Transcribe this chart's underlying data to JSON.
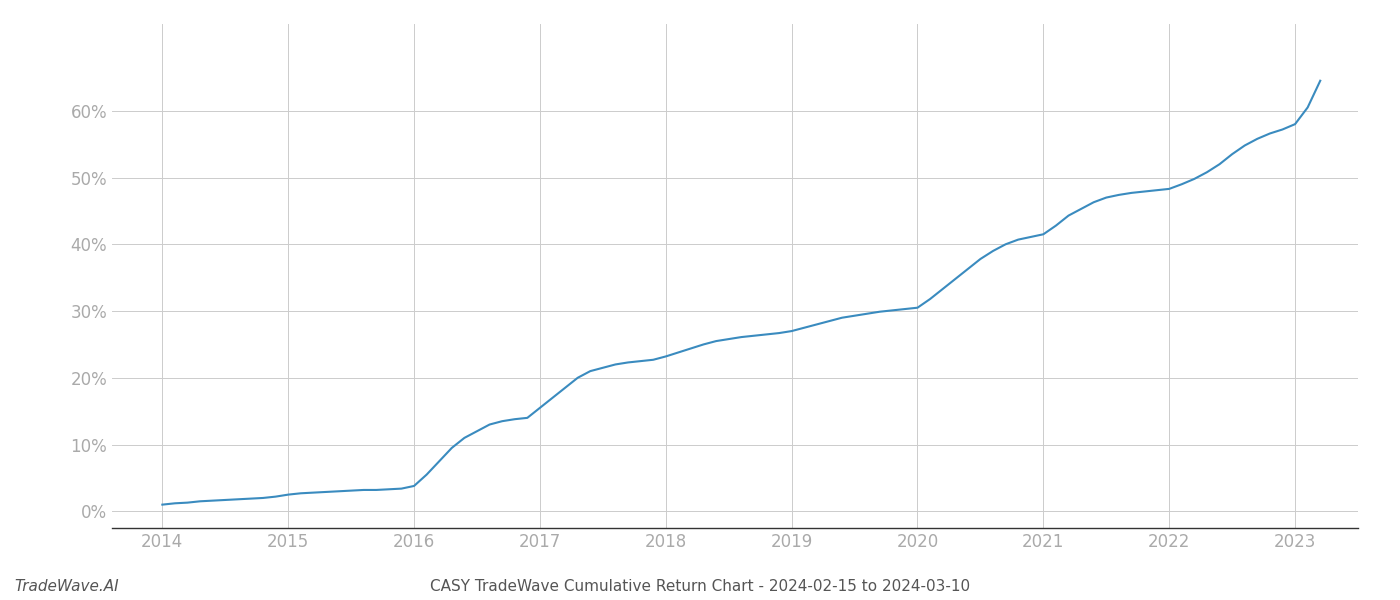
{
  "title": "CASY TradeWave Cumulative Return Chart - 2024-02-15 to 2024-03-10",
  "watermark": "TradeWave.AI",
  "line_color": "#3a8bbf",
  "background_color": "#ffffff",
  "grid_color": "#cccccc",
  "line_width": 1.5,
  "x_values": [
    2014.0,
    2014.1,
    2014.2,
    2014.3,
    2014.4,
    2014.5,
    2014.6,
    2014.7,
    2014.8,
    2014.9,
    2015.0,
    2015.1,
    2015.2,
    2015.3,
    2015.4,
    2015.5,
    2015.6,
    2015.7,
    2015.8,
    2015.9,
    2016.0,
    2016.1,
    2016.2,
    2016.3,
    2016.4,
    2016.5,
    2016.6,
    2016.7,
    2016.8,
    2016.9,
    2017.0,
    2017.1,
    2017.2,
    2017.3,
    2017.4,
    2017.5,
    2017.6,
    2017.7,
    2017.8,
    2017.9,
    2018.0,
    2018.1,
    2018.2,
    2018.3,
    2018.4,
    2018.5,
    2018.6,
    2018.7,
    2018.8,
    2018.9,
    2019.0,
    2019.1,
    2019.2,
    2019.3,
    2019.4,
    2019.5,
    2019.6,
    2019.7,
    2019.8,
    2019.9,
    2020.0,
    2020.1,
    2020.2,
    2020.3,
    2020.4,
    2020.5,
    2020.6,
    2020.7,
    2020.8,
    2020.9,
    2021.0,
    2021.1,
    2021.2,
    2021.3,
    2021.4,
    2021.5,
    2021.6,
    2021.7,
    2021.8,
    2021.9,
    2022.0,
    2022.1,
    2022.2,
    2022.3,
    2022.4,
    2022.5,
    2022.6,
    2022.7,
    2022.8,
    2022.9,
    2023.0,
    2023.1,
    2023.2
  ],
  "y_values": [
    0.01,
    0.012,
    0.013,
    0.015,
    0.016,
    0.017,
    0.018,
    0.019,
    0.02,
    0.022,
    0.025,
    0.027,
    0.028,
    0.029,
    0.03,
    0.031,
    0.032,
    0.032,
    0.033,
    0.034,
    0.038,
    0.055,
    0.075,
    0.095,
    0.11,
    0.12,
    0.13,
    0.135,
    0.138,
    0.14,
    0.155,
    0.17,
    0.185,
    0.2,
    0.21,
    0.215,
    0.22,
    0.223,
    0.225,
    0.227,
    0.232,
    0.238,
    0.244,
    0.25,
    0.255,
    0.258,
    0.261,
    0.263,
    0.265,
    0.267,
    0.27,
    0.275,
    0.28,
    0.285,
    0.29,
    0.293,
    0.296,
    0.299,
    0.301,
    0.303,
    0.305,
    0.318,
    0.333,
    0.348,
    0.363,
    0.378,
    0.39,
    0.4,
    0.407,
    0.411,
    0.415,
    0.428,
    0.443,
    0.453,
    0.463,
    0.47,
    0.474,
    0.477,
    0.479,
    0.481,
    0.483,
    0.49,
    0.498,
    0.508,
    0.52,
    0.535,
    0.548,
    0.558,
    0.566,
    0.572,
    0.58,
    0.605,
    0.645
  ],
  "xlim": [
    2013.6,
    2023.5
  ],
  "ylim": [
    -0.025,
    0.73
  ],
  "yticks": [
    0.0,
    0.1,
    0.2,
    0.3,
    0.4,
    0.5,
    0.6
  ],
  "xticks": [
    2014,
    2015,
    2016,
    2017,
    2018,
    2019,
    2020,
    2021,
    2022,
    2023
  ],
  "tick_fontsize": 12,
  "title_fontsize": 11,
  "watermark_fontsize": 11,
  "axis_color": "#999999",
  "tick_color": "#aaaaaa",
  "spine_color": "#333333"
}
